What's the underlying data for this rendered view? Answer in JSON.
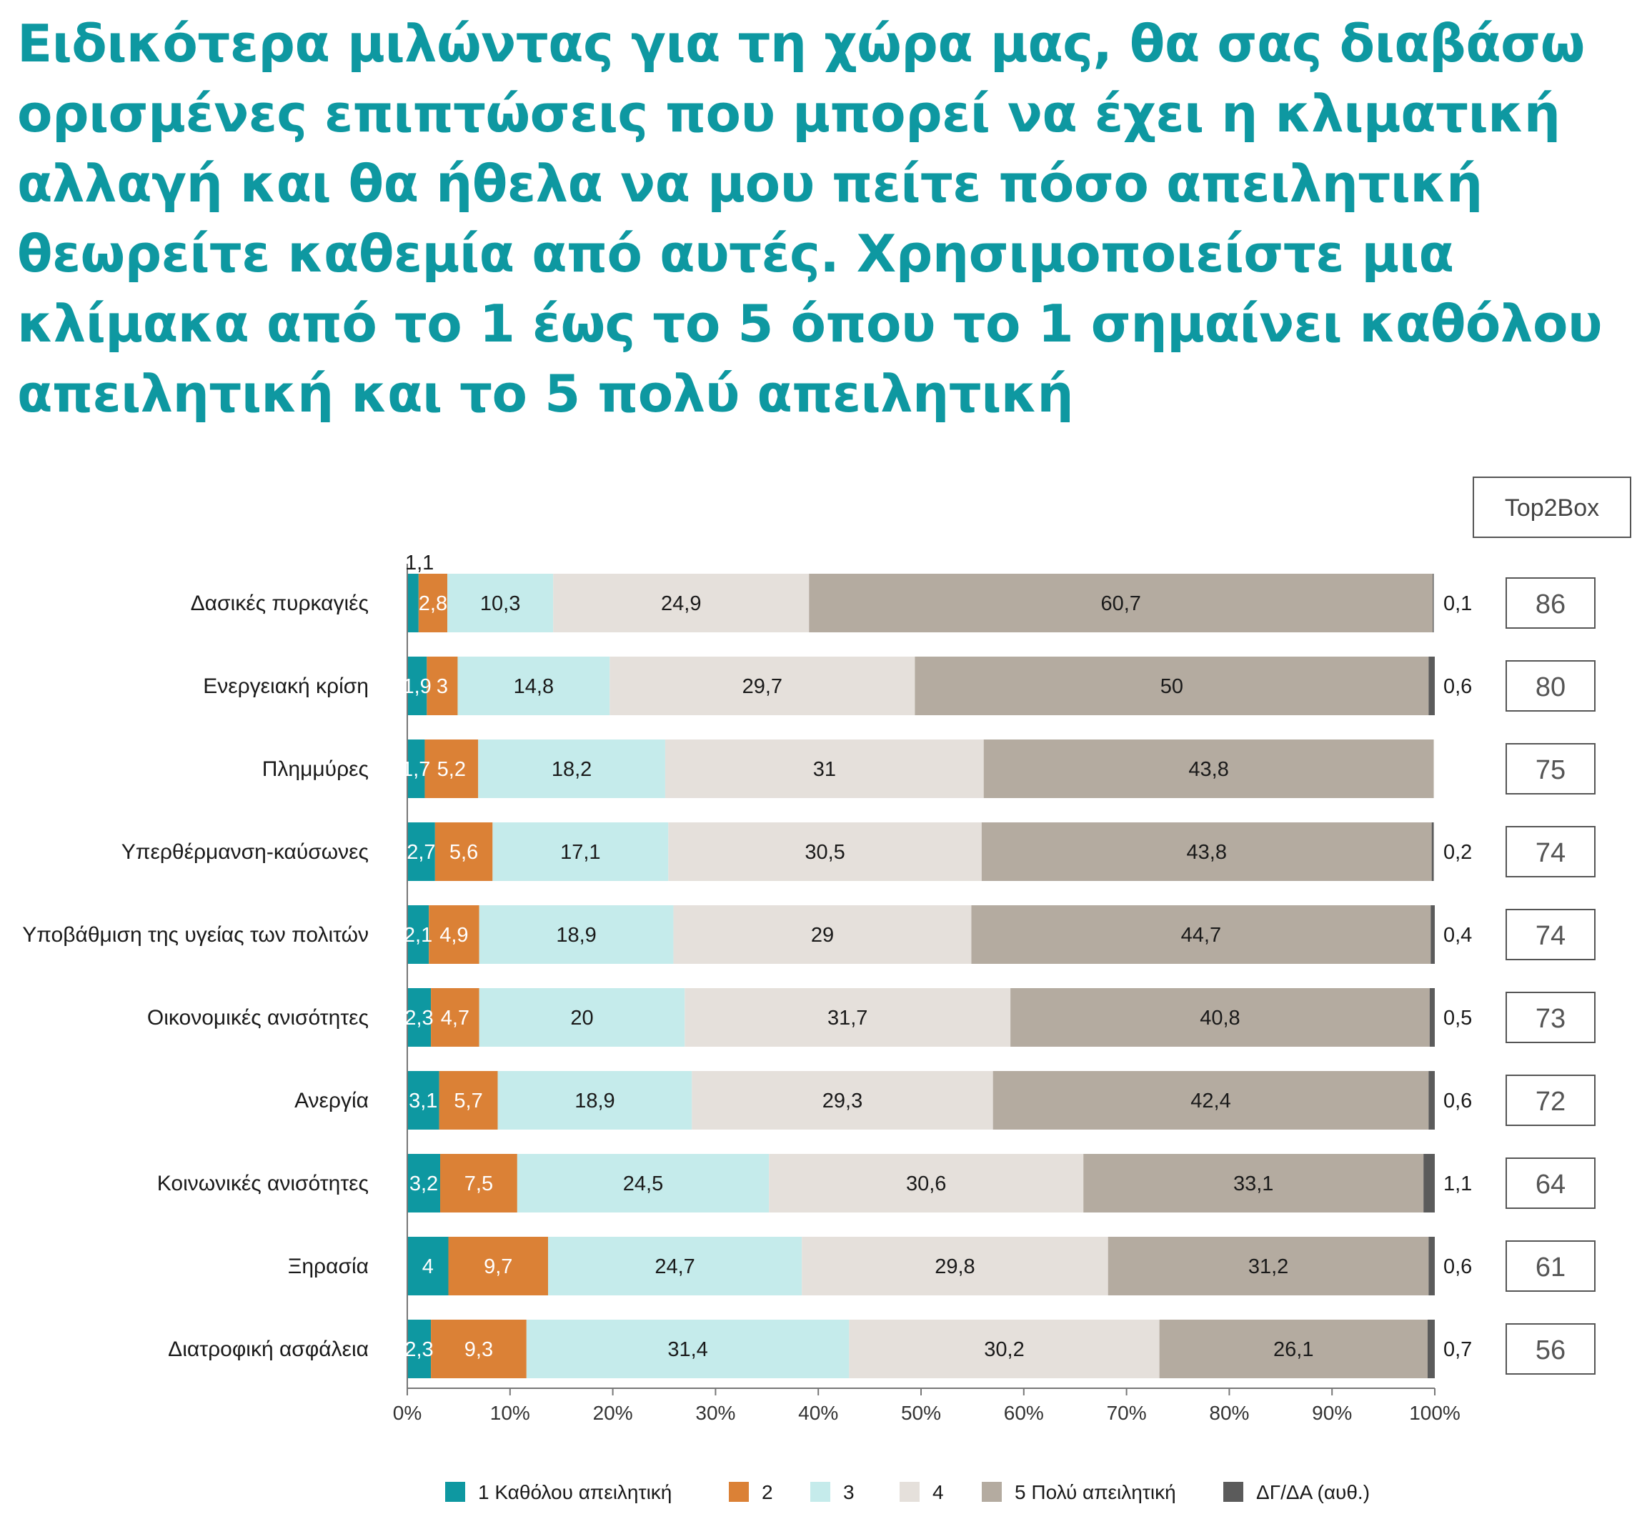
{
  "title": "Ειδικότερα μιλώντας για τη χώρα μας, θα σας διαβάσω ορισμένες επιπτώσεις που μπορεί να έχει η κλιματική αλλαγή και θα ήθελα να μου πείτε πόσο απειλητική θεωρείτε καθεμία από αυτές. Χρησιμοποιείστε μια κλίμακα από το 1 έως το 5 όπου το 1 σημαίνει καθόλου απειλητική και το 5 πολύ απειλητική",
  "top2box_header": "Top2Box",
  "chart_data": {
    "type": "bar",
    "orientation": "horizontal",
    "stacked": true,
    "categories": [
      "Δασικές πυρκαγιές",
      "Ενεργειακή κρίση",
      "Πλημμύρες",
      "Υπερθέρμανση-καύσωνες",
      "Υποβάθμιση της υγείας των πολιτών",
      "Οικονομικές ανισότητες",
      "Ανεργία",
      "Κοινωνικές ανισότητες",
      "Ξηρασία",
      "Διατροφική ασφάλεια"
    ],
    "series": [
      {
        "name": "1 Καθόλου απειλητική",
        "color": "#0E98A1",
        "values": [
          1.1,
          1.9,
          1.7,
          2.7,
          2.1,
          2.3,
          3.1,
          3.2,
          4,
          2.3
        ],
        "labels": [
          "1,1",
          "1,9",
          "1,7",
          "2,7",
          "2,1",
          "2,3",
          "3,1",
          "3,2",
          "4",
          "2,3"
        ]
      },
      {
        "name": "2",
        "color": "#DB8136",
        "values": [
          2.8,
          3,
          5.2,
          5.6,
          4.9,
          4.7,
          5.7,
          7.5,
          9.7,
          9.3
        ],
        "labels": [
          "2,8",
          "3",
          "5,2",
          "5,6",
          "4,9",
          "4,7",
          "5,7",
          "7,5",
          "9,7",
          "9,3"
        ]
      },
      {
        "name": "3",
        "color": "#C5EBEB",
        "values": [
          10.3,
          14.8,
          18.2,
          17.1,
          18.9,
          20,
          18.9,
          24.5,
          24.7,
          31.4
        ],
        "labels": [
          "10,3",
          "14,8",
          "18,2",
          "17,1",
          "18,9",
          "20",
          "18,9",
          "24,5",
          "24,7",
          "31,4"
        ]
      },
      {
        "name": "4",
        "color": "#E5E0DB",
        "values": [
          24.9,
          29.7,
          31,
          30.5,
          29,
          31.7,
          29.3,
          30.6,
          29.8,
          30.2
        ],
        "labels": [
          "24,9",
          "29,7",
          "31",
          "30,5",
          "29",
          "31,7",
          "29,3",
          "30,6",
          "29,8",
          "30,2"
        ]
      },
      {
        "name": "5 Πολύ απειλητική",
        "color": "#B4ABA0",
        "values": [
          60.7,
          50,
          43.8,
          43.8,
          44.7,
          40.8,
          42.4,
          33.1,
          31.2,
          26.1
        ],
        "labels": [
          "60,7",
          "50",
          "43,8",
          "43,8",
          "44,7",
          "40,8",
          "42,4",
          "33,1",
          "31,2",
          "26,1"
        ]
      },
      {
        "name": "ΔΓ/ΔΑ (αυθ.)",
        "color": "#5B5B5B",
        "values": [
          0.1,
          0.6,
          0,
          0.2,
          0.4,
          0.5,
          0.6,
          1.1,
          0.6,
          0.7
        ],
        "labels": [
          "0,1",
          "0,6",
          "",
          "0,2",
          "0,4",
          "0,5",
          "0,6",
          "1,1",
          "0,6",
          "0,7"
        ]
      }
    ],
    "top2box": [
      "86",
      "80",
      "75",
      "74",
      "74",
      "73",
      "72",
      "64",
      "61",
      "56"
    ],
    "xaxis_ticks": [
      "0%",
      "10%",
      "20%",
      "30%",
      "40%",
      "50%",
      "60%",
      "70%",
      "80%",
      "90%",
      "100%"
    ],
    "xlim": [
      0,
      100
    ],
    "grid": false,
    "legend_position": "bottom"
  }
}
